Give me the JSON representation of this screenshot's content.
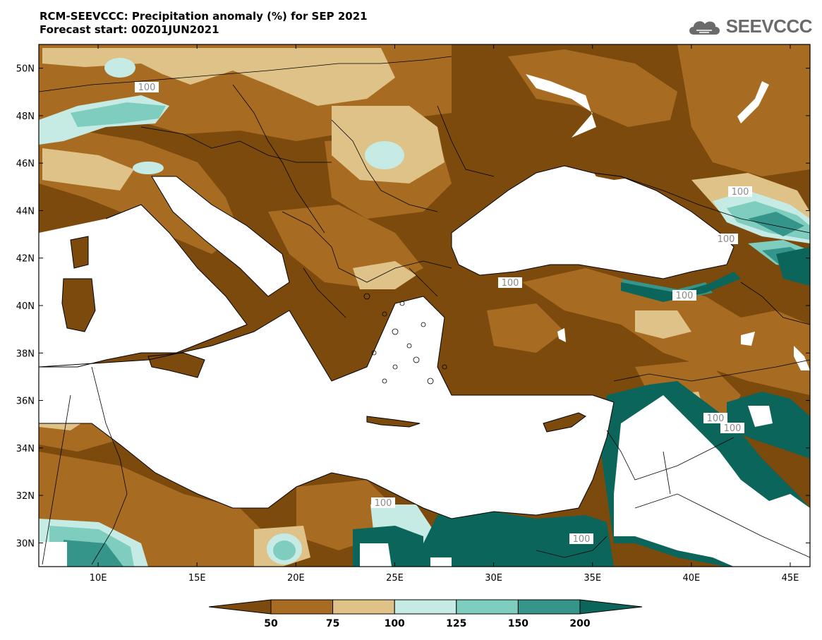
{
  "header": {
    "title_line1": "RCM-SEEVCCC: Precipitation anomaly (%) for SEP 2021",
    "title_line2": "Forecast start: 00Z01JUN2021",
    "logo_text": "SEEVCCC"
  },
  "map": {
    "lon_range": [
      7,
      46
    ],
    "lat_range": [
      29,
      51
    ],
    "lat_ticks": [
      "50N",
      "48N",
      "46N",
      "44N",
      "42N",
      "40N",
      "38N",
      "36N",
      "34N",
      "32N",
      "30N"
    ],
    "lon_ticks": [
      "10E",
      "15E",
      "20E",
      "25E",
      "30E",
      "35E",
      "40E",
      "45E"
    ],
    "contour_label": "100",
    "colors": {
      "below_50": "#7b4a0c",
      "50_75": "#a76c21",
      "75_100": "#dfc287",
      "100_125": "#c5ebe4",
      "125_150": "#7fcdbf",
      "150_200": "#35958a",
      "above_200": "#0b655a",
      "sea": "#ffffff"
    }
  },
  "colorbar": {
    "levels": [
      "50",
      "75",
      "100",
      "125",
      "150",
      "200"
    ],
    "colors": [
      "#7b4a0c",
      "#a76c21",
      "#dfc287",
      "#c5ebe4",
      "#7fcdbf",
      "#35958a",
      "#0b655a"
    ]
  }
}
